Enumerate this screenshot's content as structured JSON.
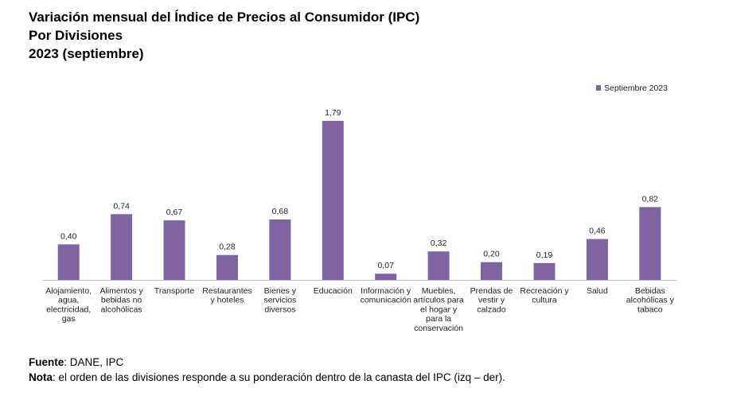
{
  "title_lines": [
    "Variación mensual del Índice de Precios al Consumidor (IPC)",
    "Por Divisiones",
    "2023 (septiembre)"
  ],
  "chart_data": {
    "type": "bar",
    "categories": [
      "Alojamiento, agua, electricidad, gas",
      "Alimentos y bebidas no alcohólicas",
      "Transporte",
      "Restaurantes y hoteles",
      "Bienes y servicios diversos",
      "Educación",
      "Información y comunicación",
      "Muebles, artículos para el hogar y para la conservación",
      "Prendas de vestir y calzado",
      "Recreación y cultura",
      "Salud",
      "Bebidas alcohólicas y tabaco"
    ],
    "category_label_lines": [
      [
        "Alojamiento,",
        "agua,",
        "electricidad,",
        "gas"
      ],
      [
        "Alimentos y",
        "bebidas no",
        "alcohólicas"
      ],
      [
        "Transporte"
      ],
      [
        "Restaurantes",
        "y hoteles"
      ],
      [
        "Bienes y",
        "servicios",
        "diversos"
      ],
      [
        "Educación"
      ],
      [
        "Información y",
        "comunicación"
      ],
      [
        "Muebles,",
        "artículos para",
        "el hogar y",
        "para la",
        "conservación"
      ],
      [
        "Prendas de",
        "vestir y",
        "calzado"
      ],
      [
        "Recreación y",
        "cultura"
      ],
      [
        "Salud"
      ],
      [
        "Bebidas",
        "alcohólicas y",
        "tabaco"
      ]
    ],
    "series": [
      {
        "name": "Septiembre 2023",
        "values": [
          0.4,
          0.74,
          0.67,
          0.28,
          0.68,
          1.79,
          0.07,
          0.32,
          0.2,
          0.19,
          0.46,
          0.82
        ],
        "labels": [
          "0,40",
          "0,74",
          "0,67",
          "0,28",
          "0,68",
          "1,79",
          "0,07",
          "0,32",
          "0,20",
          "0,19",
          "0,46",
          "0,82"
        ],
        "color": "#8064a2"
      }
    ],
    "ylim": [
      0,
      1.79
    ],
    "legend_position": "top-right",
    "grid": false,
    "xlabel": "",
    "ylabel": ""
  },
  "footer": {
    "source_label": "Fuente",
    "source_text": ": DANE, IPC",
    "note_label": "Nota",
    "note_text": ": el orden de las divisiones responde a su ponderación dentro de la canasta del IPC (izq – der)."
  }
}
